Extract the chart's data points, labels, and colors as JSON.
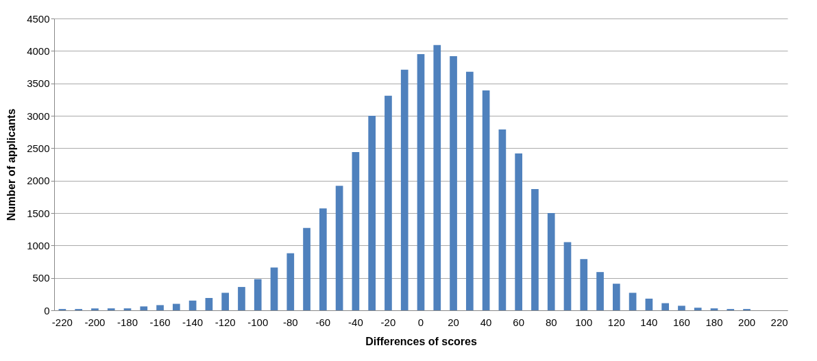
{
  "chart_data": {
    "type": "bar",
    "xlabel": "Differences of scores",
    "ylabel": "Number of applicants",
    "categories": [
      "-220",
      null,
      "-200",
      null,
      "-180",
      null,
      "-160",
      null,
      "-140",
      null,
      "-120",
      null,
      "-100",
      null,
      "-80",
      null,
      "-60",
      null,
      "-40",
      null,
      "-20",
      null,
      "0",
      null,
      "20",
      null,
      "40",
      null,
      "60",
      null,
      "80",
      null,
      "100",
      null,
      "120",
      null,
      "140",
      null,
      "160",
      null,
      "180",
      null,
      "200",
      null,
      "220"
    ],
    "values": [
      20,
      20,
      30,
      30,
      30,
      60,
      80,
      100,
      150,
      190,
      270,
      360,
      480,
      660,
      880,
      1270,
      1570,
      1920,
      2440,
      3000,
      3310,
      3710,
      3950,
      4090,
      3920,
      3680,
      3390,
      2790,
      2420,
      1870,
      1500,
      1050,
      790,
      590,
      410,
      270,
      180,
      110,
      70,
      40,
      30,
      20,
      20,
      0,
      0
    ],
    "color": "#4f81bd",
    "ylim": [
      0,
      4500
    ],
    "yticks": [
      0,
      500,
      1000,
      1500,
      2000,
      2500,
      3000,
      3500,
      4000,
      4500
    ],
    "grid": "y"
  }
}
